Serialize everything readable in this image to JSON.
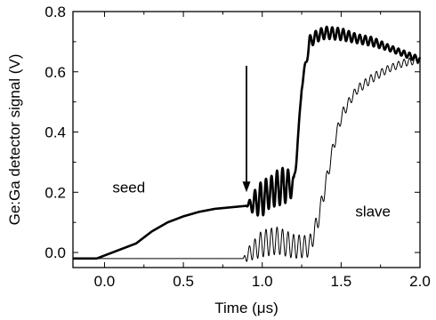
{
  "chart_data": {
    "type": "line",
    "xlabel": "Time (μs)",
    "ylabel": "Ge:Ga detector signal (V)",
    "xlim": [
      -0.2,
      2.0
    ],
    "ylim": [
      -0.05,
      0.8
    ],
    "xticks": [
      0.0,
      0.5,
      1.0,
      1.5,
      2.0
    ],
    "xtick_labels": [
      "0.0",
      "0.5",
      "1.0",
      "1.5",
      "2.0"
    ],
    "yticks": [
      0.0,
      0.2,
      0.4,
      0.6,
      0.8
    ],
    "ytick_labels": [
      "0.0",
      "0.2",
      "0.4",
      "0.6",
      "0.8"
    ],
    "grid": false,
    "series": [
      {
        "name": "seed",
        "style": "thick",
        "x": [
          -0.2,
          -0.05,
          0.0,
          0.1,
          0.2,
          0.3,
          0.4,
          0.5,
          0.6,
          0.7,
          0.8,
          0.9,
          0.95,
          1.0,
          1.05,
          1.1,
          1.15,
          1.2,
          1.23,
          1.25,
          1.3,
          1.35,
          1.4,
          1.5,
          1.6,
          1.7,
          1.8,
          1.9,
          2.0
        ],
        "y": [
          -0.02,
          -0.02,
          -0.01,
          0.01,
          0.03,
          0.07,
          0.1,
          0.12,
          0.135,
          0.145,
          0.15,
          0.155,
          0.165,
          0.18,
          0.2,
          0.215,
          0.225,
          0.22,
          0.4,
          0.55,
          0.7,
          0.72,
          0.73,
          0.725,
          0.71,
          0.7,
          0.68,
          0.66,
          0.64
        ],
        "oscillation_amplitude": [
          0,
          0,
          0,
          0,
          0,
          0,
          0,
          0,
          0,
          0,
          0,
          0,
          0.04,
          0.06,
          0.05,
          0.06,
          0.06,
          0.03,
          0.01,
          0.01,
          0.02,
          0.02,
          0.02,
          0.02,
          0.015,
          0.015,
          0.01,
          0.01,
          0.01
        ]
      },
      {
        "name": "slave",
        "style": "thin",
        "x": [
          -0.2,
          0.0,
          0.5,
          0.88,
          0.9,
          1.0,
          1.1,
          1.2,
          1.3,
          1.35,
          1.4,
          1.45,
          1.5,
          1.55,
          1.6,
          1.7,
          1.8,
          1.9,
          2.0
        ],
        "y": [
          -0.02,
          -0.02,
          -0.02,
          -0.02,
          -0.01,
          0.03,
          0.04,
          0.02,
          0.02,
          0.1,
          0.22,
          0.35,
          0.45,
          0.5,
          0.54,
          0.58,
          0.61,
          0.63,
          0.64
        ],
        "oscillation_amplitude": [
          0,
          0,
          0,
          0,
          0.02,
          0.045,
          0.045,
          0.04,
          0.035,
          0.03,
          0.025,
          0.02,
          0.02,
          0.015,
          0.015,
          0.015,
          0.012,
          0.012,
          0.012
        ]
      }
    ],
    "annotations": [
      {
        "text": "seed",
        "x": 0.05,
        "y": 0.2
      },
      {
        "text": "slave",
        "x": 1.59,
        "y": 0.12
      }
    ],
    "arrow": {
      "x": 0.9,
      "y_from": 0.62,
      "y_to": 0.2
    }
  }
}
